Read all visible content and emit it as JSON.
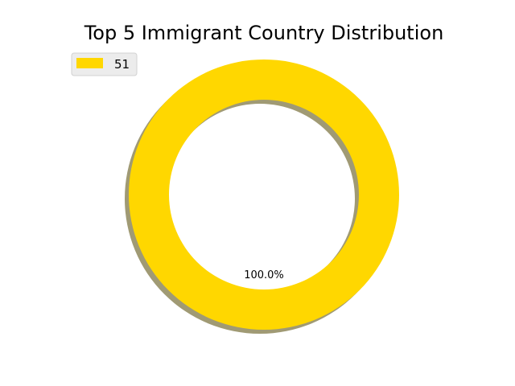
{
  "chart_data": {
    "type": "pie",
    "style": "donut",
    "title": "Top 5 Immigrant Country Distribution",
    "categories": [
      "51"
    ],
    "values": [
      100
    ],
    "slice_labels": [
      "100.0%"
    ],
    "colors": [
      "#FFD700"
    ],
    "shadow": true,
    "shadow_color": "#a09a74",
    "legend": {
      "position": "top-left",
      "entries": [
        "51"
      ]
    },
    "xlabel": "",
    "ylabel": ""
  }
}
